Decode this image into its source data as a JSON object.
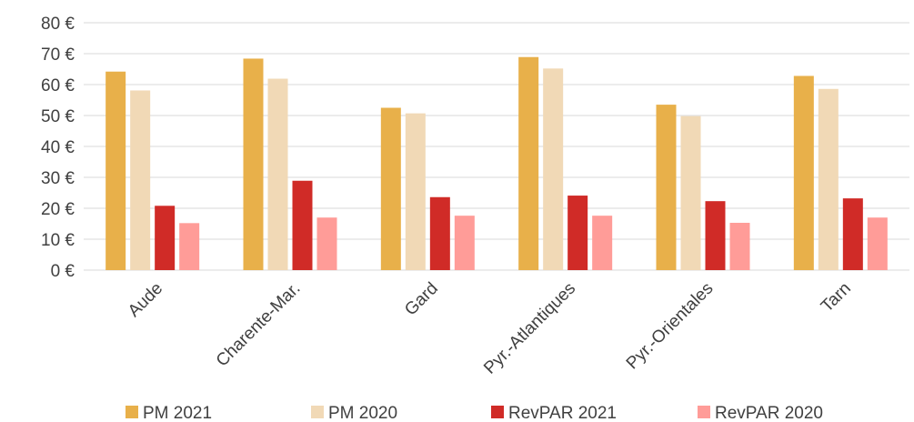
{
  "chart_data": {
    "type": "bar",
    "categories": [
      "Aude",
      "Charente-Mar.",
      "Gard",
      "Pyr.-Atlantiques",
      "Pyr.-Orientales",
      "Tarn"
    ],
    "series": [
      {
        "name": "PM 2021",
        "color": "#E8B04A",
        "values": [
          64.2,
          68.4,
          52.5,
          68.9,
          53.5,
          62.8
        ]
      },
      {
        "name": "PM 2020",
        "color": "#F1D9B6",
        "values": [
          58.1,
          61.9,
          50.7,
          65.2,
          49.8,
          58.6
        ]
      },
      {
        "name": "RevPAR 2021",
        "color": "#D02B27",
        "values": [
          20.8,
          28.9,
          23.6,
          24.1,
          22.3,
          23.2
        ]
      },
      {
        "name": "RevPAR 2020",
        "color": "#FF9C98",
        "values": [
          15.2,
          17.0,
          17.6,
          17.6,
          15.3,
          17.0
        ]
      }
    ],
    "yticks": [
      "0 €",
      "10 €",
      "20 €",
      "30 €",
      "40 €",
      "50 €",
      "60 €",
      "70 €",
      "80 €"
    ],
    "ylim": [
      0,
      80
    ],
    "grid": true,
    "legend_position": "bottom",
    "title": "",
    "xlabel": "",
    "ylabel": ""
  }
}
